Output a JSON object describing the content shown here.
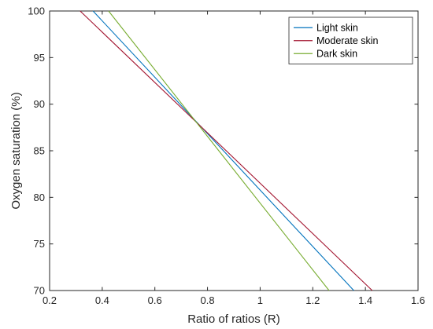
{
  "chart_data": {
    "type": "line",
    "title": "",
    "xlabel": "Ratio of ratios (R)",
    "ylabel": "Oxygen saturation (%)",
    "xlim": [
      0.2,
      1.6
    ],
    "ylim": [
      70,
      100
    ],
    "xticks": [
      0.2,
      0.4,
      0.6,
      0.8,
      1.0,
      1.2,
      1.4,
      1.6
    ],
    "xtick_labels": [
      "0.2",
      "0.4",
      "0.6",
      "0.8",
      "1",
      "1.2",
      "1.4",
      "1.6"
    ],
    "yticks": [
      70,
      75,
      80,
      85,
      90,
      95,
      100
    ],
    "ytick_labels": [
      "70",
      "75",
      "80",
      "85",
      "90",
      "95",
      "100"
    ],
    "grid": false,
    "legend_position": "top-right",
    "series": [
      {
        "name": "Light skin",
        "color": "#0072BD",
        "x": [
          0.365,
          1.356
        ],
        "y": [
          100,
          70
        ]
      },
      {
        "name": "Moderate skin",
        "color": "#A2142F",
        "x": [
          0.316,
          1.426
        ],
        "y": [
          100,
          70
        ]
      },
      {
        "name": "Dark skin",
        "color": "#77AC30",
        "x": [
          0.424,
          1.262
        ],
        "y": [
          100,
          70
        ]
      }
    ]
  }
}
